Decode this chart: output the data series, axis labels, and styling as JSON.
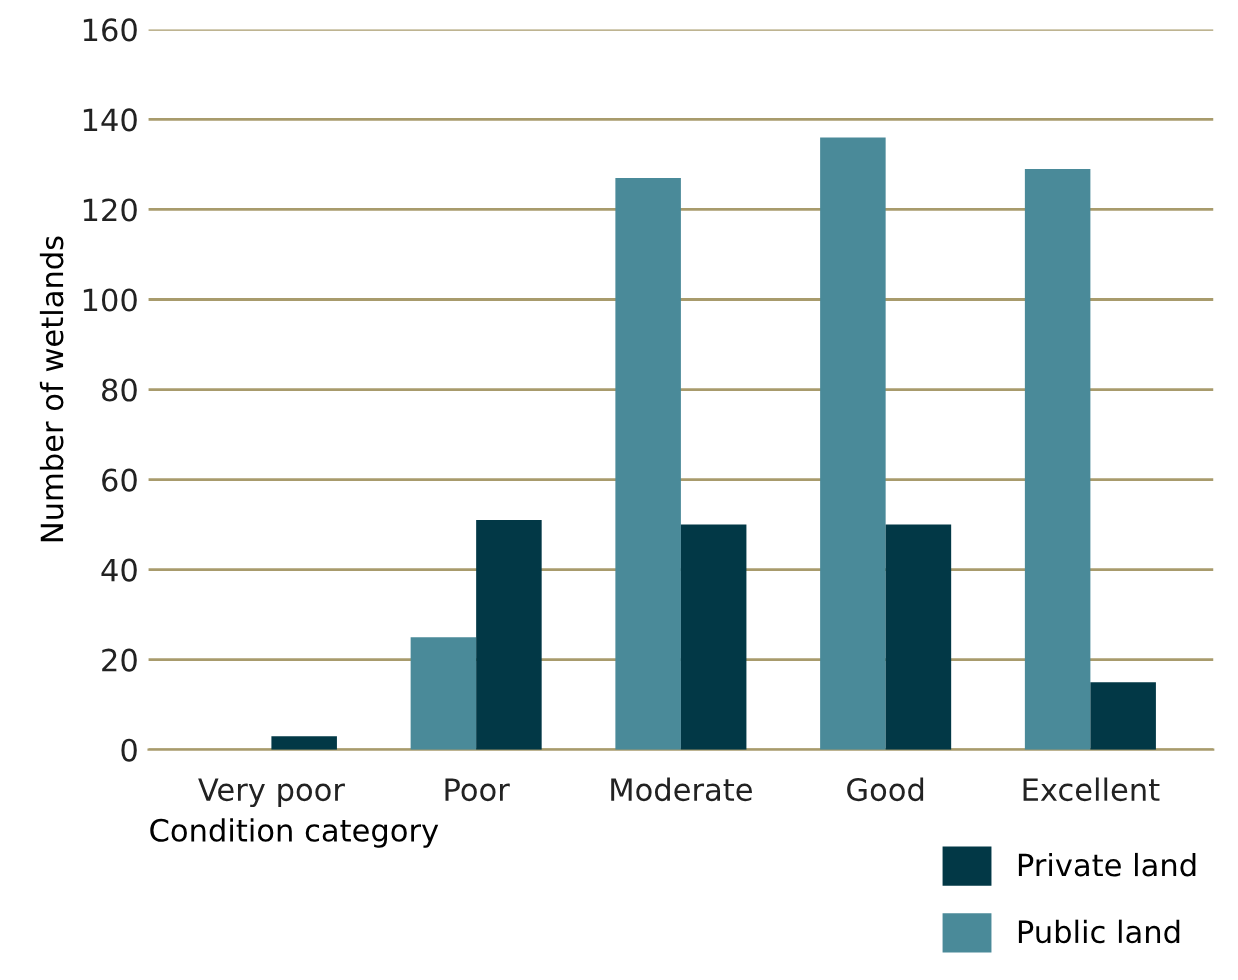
{
  "chart_data": {
    "type": "bar",
    "xlabel": "Condition category",
    "ylabel": "Number of wetlands",
    "categories": [
      "Very poor",
      "Poor",
      "Moderate",
      "Good",
      "Excellent"
    ],
    "series": [
      {
        "name": "Public land",
        "color": "#4a8a99",
        "values": [
          0,
          25,
          127,
          136,
          129
        ]
      },
      {
        "name": "Private land",
        "color": "#023846",
        "values": [
          3,
          51,
          50,
          50,
          15
        ]
      }
    ],
    "ylim": [
      0,
      160
    ],
    "yticks": [
      0,
      20,
      40,
      60,
      80,
      100,
      120,
      140,
      160
    ],
    "grid": "y",
    "legend": "bottom right"
  }
}
